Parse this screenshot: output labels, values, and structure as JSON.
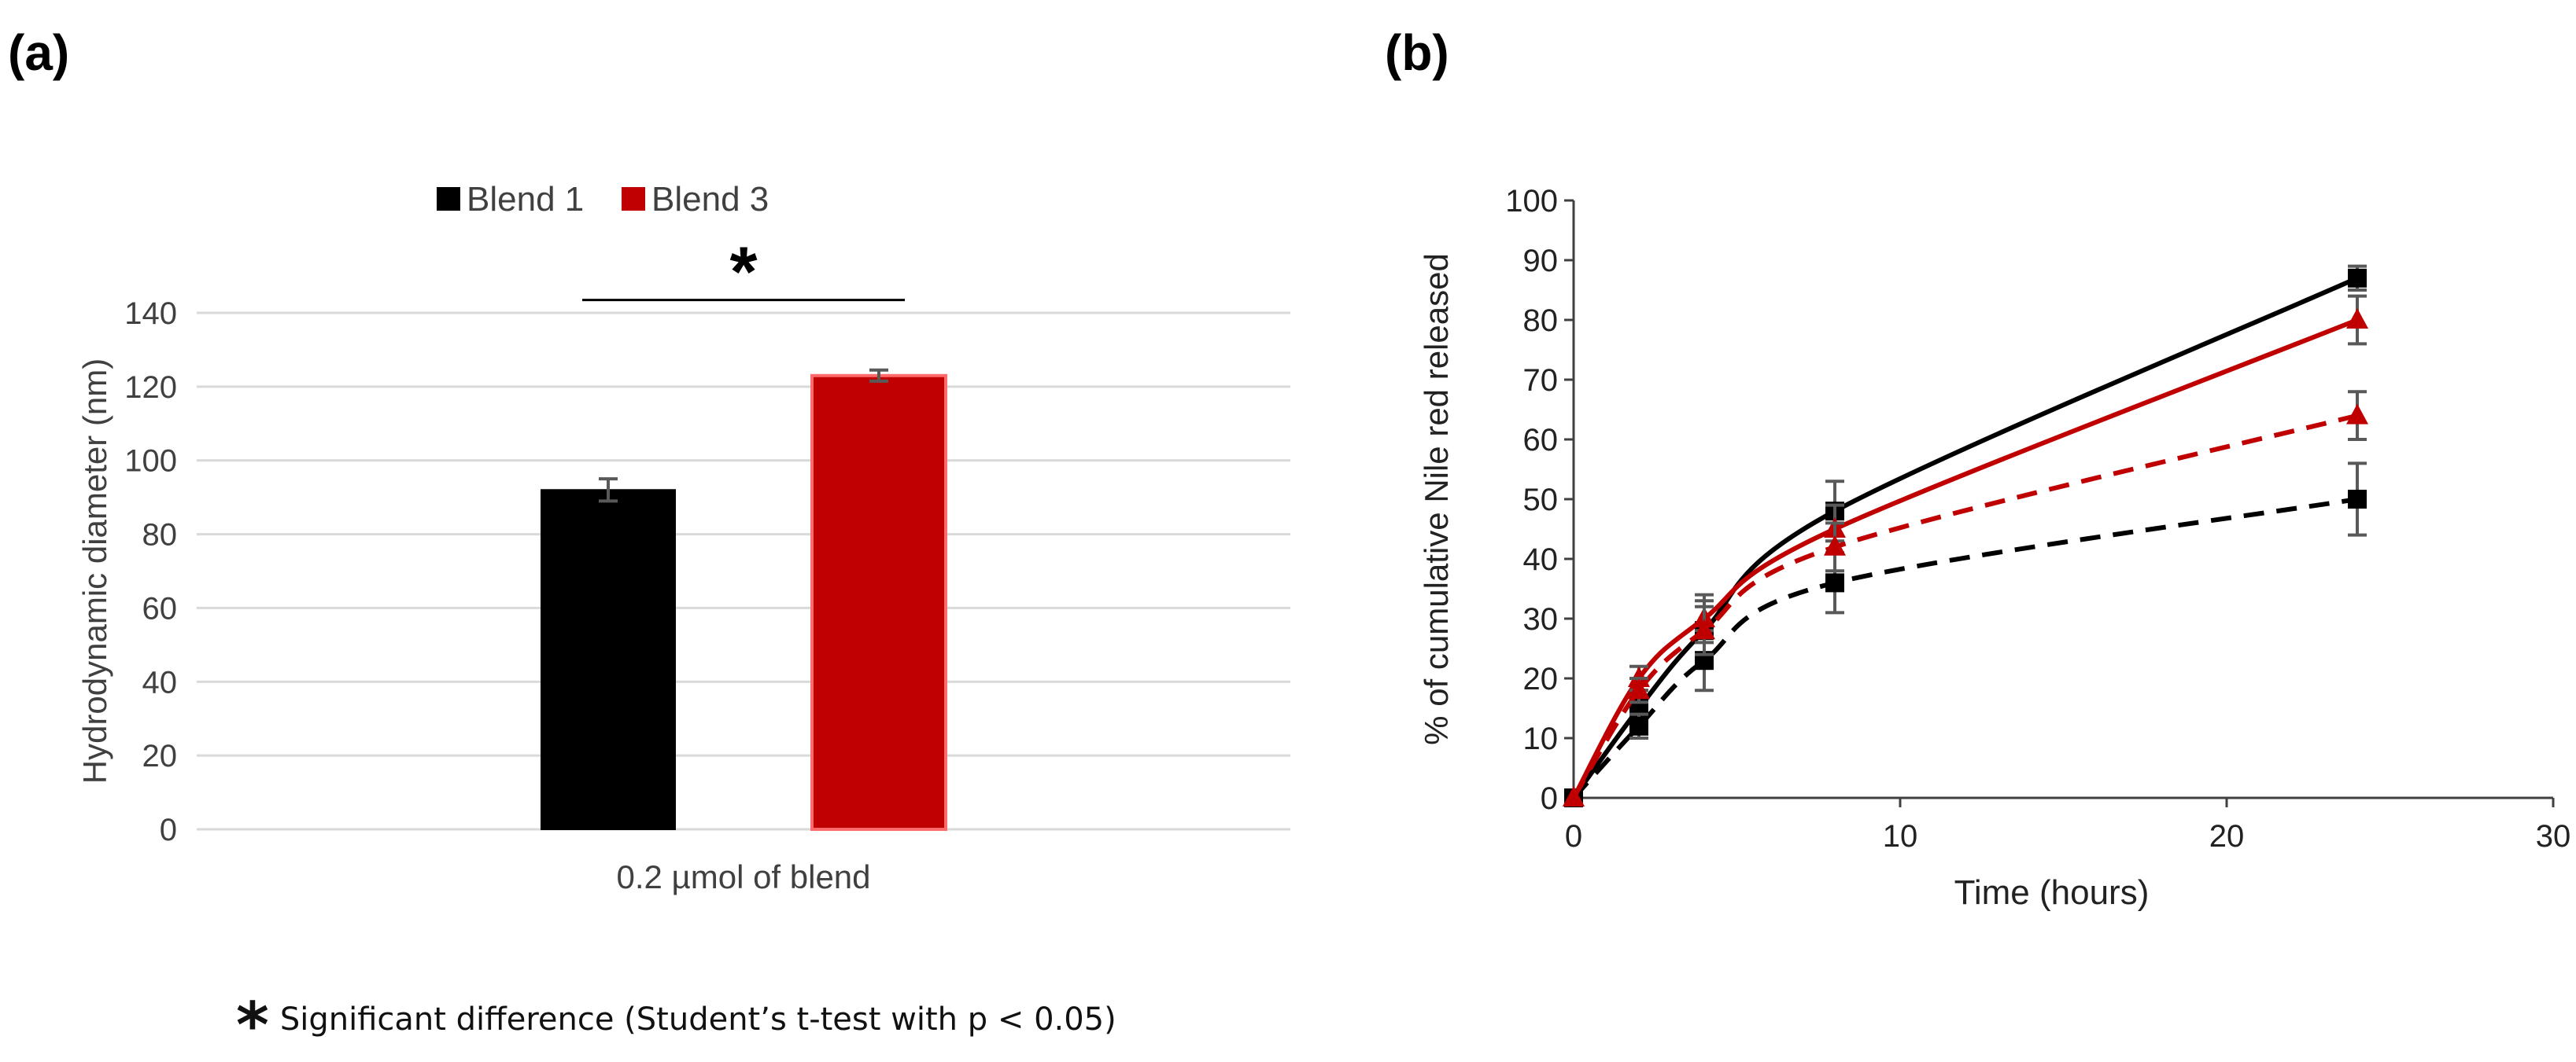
{
  "panels": {
    "a_label": "(a)",
    "b_label": "(b)"
  },
  "footnote": {
    "symbol": "*",
    "text": "Significant difference (Student’s t-test with p < 0.05)"
  },
  "colors": {
    "blend1": "#000000",
    "blend3": "#c00000",
    "grid": "#d9d9d9",
    "errorbar": "#595959"
  },
  "chart_data": [
    {
      "id": "a",
      "type": "bar",
      "categories": [
        "0.2 µmol of blend"
      ],
      "series": [
        {
          "name": "Blend 1",
          "values": [
            92
          ],
          "error": [
            3
          ],
          "color": "#000000"
        },
        {
          "name": "Blend 3",
          "values": [
            123
          ],
          "error": [
            1.5
          ],
          "color": "#c00000"
        }
      ],
      "xlabel": "",
      "ylabel": "Hydrodynamic diameter (nm)",
      "ylim": [
        0,
        140
      ],
      "yticks": [
        0,
        20,
        40,
        60,
        80,
        100,
        120,
        140
      ],
      "grid": true,
      "legend": "top-center",
      "significance_marker": "*"
    },
    {
      "id": "b",
      "type": "scatter",
      "xlabel": "Time (hours)",
      "ylabel": "% of cumulative Nile red released",
      "xlim": [
        0,
        30
      ],
      "ylim": [
        0,
        100
      ],
      "xticks": [
        0,
        10,
        20,
        30
      ],
      "yticks": [
        0,
        10,
        20,
        30,
        40,
        50,
        60,
        70,
        80,
        90,
        100
      ],
      "grid": false,
      "series": [
        {
          "marker": "square",
          "color": "#000000",
          "line": "solid",
          "x": [
            0,
            2,
            4,
            8,
            24
          ],
          "y": [
            0,
            15,
            28,
            48,
            87
          ],
          "error": [
            0,
            3,
            5,
            5,
            2
          ]
        },
        {
          "marker": "square",
          "color": "#000000",
          "line": "dashed",
          "x": [
            0,
            2,
            4,
            8,
            24
          ],
          "y": [
            0,
            12,
            23,
            36,
            50
          ],
          "error": [
            0,
            2,
            5,
            5,
            6
          ]
        },
        {
          "marker": "triangle",
          "color": "#c00000",
          "line": "solid",
          "x": [
            0,
            2,
            4,
            8,
            24
          ],
          "y": [
            0,
            20,
            30,
            45,
            80
          ],
          "error": [
            0,
            2,
            4,
            4,
            4
          ]
        },
        {
          "marker": "triangle",
          "color": "#c00000",
          "line": "dashed",
          "x": [
            0,
            2,
            4,
            8,
            24
          ],
          "y": [
            0,
            18,
            28,
            42,
            64
          ],
          "error": [
            0,
            2,
            4,
            4,
            4
          ]
        }
      ]
    }
  ]
}
